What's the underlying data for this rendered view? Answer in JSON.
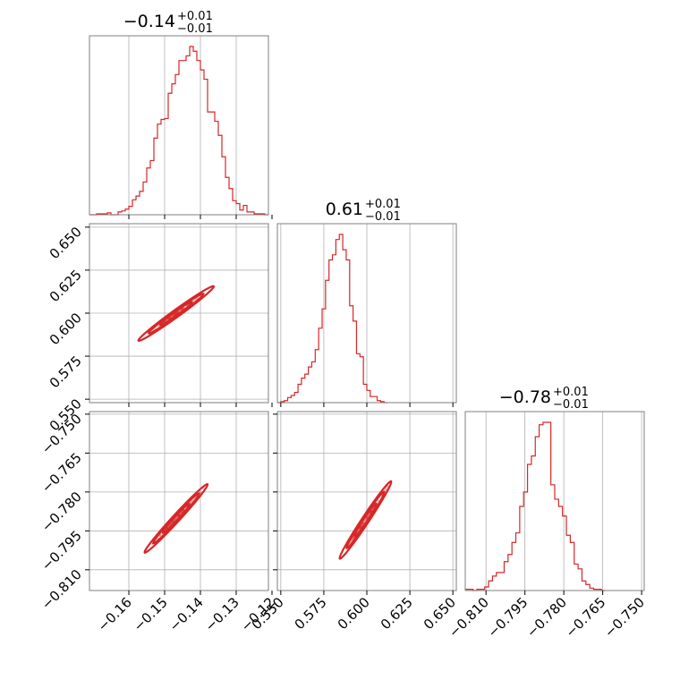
{
  "chart_data": {
    "type": "scatter",
    "kind": "corner plot",
    "color": "#d62728",
    "grid": true,
    "parameters": [
      {
        "median": "−0.14",
        "plus": "+0.01",
        "minus": "−0.01",
        "range": [
          -0.171,
          -0.121
        ],
        "ticks": [
          -0.16,
          -0.15,
          -0.14,
          -0.13,
          -0.12
        ],
        "tick_labels": [
          "−0.16",
          "−0.15",
          "−0.14",
          "−0.13",
          "−0.12"
        ]
      },
      {
        "median": "0.61",
        "plus": "+0.01",
        "minus": "−0.01",
        "range": [
          0.548,
          0.652
        ],
        "ticks": [
          0.55,
          0.575,
          0.6,
          0.625,
          0.65
        ],
        "tick_labels": [
          "0.550",
          "0.575",
          "0.600",
          "0.625",
          "0.650"
        ]
      },
      {
        "median": "−0.78",
        "plus": "+0.01",
        "minus": "−0.01",
        "range": [
          -0.818,
          -0.749
        ],
        "ticks": [
          -0.81,
          -0.795,
          -0.78,
          -0.765,
          -0.75
        ],
        "tick_labels": [
          "−0.810",
          "−0.795",
          "−0.780",
          "−0.765",
          "−0.750"
        ]
      }
    ],
    "histograms": [
      {
        "param": 0,
        "bin_width": 0.001,
        "start": -0.171,
        "counts": [
          0,
          0,
          1,
          1,
          1,
          2,
          0,
          0,
          3,
          4,
          6,
          9,
          16,
          20,
          25,
          35,
          50,
          58,
          82,
          97,
          102,
          103,
          130,
          140,
          150,
          165,
          165,
          170,
          180,
          175,
          165,
          155,
          145,
          110,
          110,
          100,
          85,
          62,
          40,
          28,
          15,
          12,
          5,
          10,
          3,
          3,
          1,
          1,
          1,
          0
        ]
      },
      {
        "param": 1,
        "bin_width": 0.002,
        "start": 0.548,
        "counts": [
          0,
          1,
          2,
          5,
          7,
          10,
          18,
          24,
          28,
          35,
          40,
          52,
          73,
          92,
          120,
          140,
          145,
          160,
          165,
          150,
          140,
          95,
          80,
          48,
          45,
          18,
          12,
          6,
          6,
          2,
          1,
          0
        ]
      },
      {
        "param": 2,
        "bin_width": 0.0015,
        "start": -0.818,
        "counts": [
          1,
          1,
          0,
          1,
          1,
          3,
          8,
          12,
          15,
          15,
          24,
          30,
          40,
          48,
          70,
          82,
          105,
          112,
          128,
          138,
          140,
          140,
          88,
          76,
          70,
          62,
          46,
          40,
          22,
          18,
          8,
          5,
          2,
          1,
          1,
          0
        ]
      }
    ],
    "pairs": [
      {
        "x": 0,
        "y": 1,
        "slope": 1.5,
        "intercept": 0.82
      },
      {
        "x": 0,
        "y": 2,
        "slope": 1.5,
        "intercept": -0.57
      },
      {
        "x": 1,
        "y": 2,
        "slope": 1.0,
        "intercept": -1.39
      }
    ]
  }
}
